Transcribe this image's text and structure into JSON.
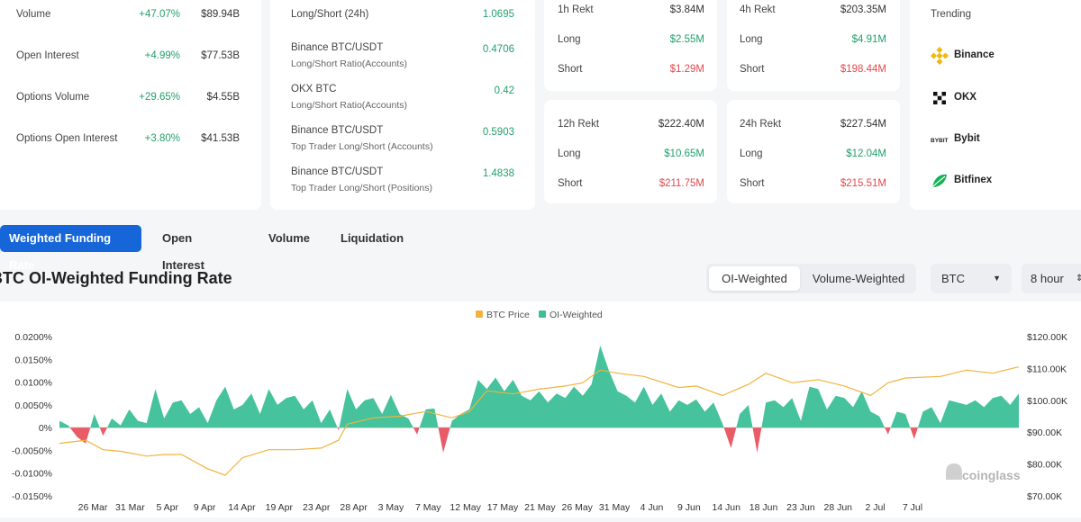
{
  "stats": [
    {
      "label": "Volume",
      "change": "+47.07%",
      "value": "$89.94B"
    },
    {
      "label": "Open Interest",
      "change": "+4.99%",
      "value": "$77.53B"
    },
    {
      "label": "Options Volume",
      "change": "+29.65%",
      "value": "$4.55B"
    },
    {
      "label": "Options Open Interest",
      "change": "+3.80%",
      "value": "$41.53B"
    }
  ],
  "ratios": [
    {
      "label": "Long/Short (24h)",
      "sub": "",
      "value": "1.0695"
    },
    {
      "label": "Binance BTC/USDT",
      "sub": "Long/Short Ratio(Accounts)",
      "value": "0.4706"
    },
    {
      "label": "OKX BTC",
      "sub": "Long/Short Ratio(Accounts)",
      "value": "0.42"
    },
    {
      "label": "Binance BTC/USDT",
      "sub": "Top Trader Long/Short (Accounts)",
      "value": "0.5903"
    },
    {
      "label": "Binance BTC/USDT",
      "sub": "Top Trader Long/Short (Positions)",
      "value": "1.4838"
    }
  ],
  "rekt": [
    {
      "title": "1h Rekt",
      "total": "$3.84M",
      "long_label": "Long",
      "long": "$2.55M",
      "short_label": "Short",
      "short": "$1.29M"
    },
    {
      "title": "4h Rekt",
      "total": "$203.35M",
      "long_label": "Long",
      "long": "$4.91M",
      "short_label": "Short",
      "short": "$198.44M"
    },
    {
      "title": "12h Rekt",
      "total": "$222.40M",
      "long_label": "Long",
      "long": "$10.65M",
      "short_label": "Short",
      "short": "$211.75M"
    },
    {
      "title": "24h Rekt",
      "total": "$227.54M",
      "long_label": "Long",
      "long": "$12.04M",
      "short_label": "Short",
      "short": "$215.51M"
    }
  ],
  "trending": {
    "title": "Trending",
    "items": [
      {
        "name": "Binance",
        "icon": "binance-logo-icon",
        "color": "#f0b90b"
      },
      {
        "name": "OKX",
        "icon": "okx-logo-icon",
        "color": "#111111"
      },
      {
        "name": "Bybit",
        "icon": "bybit-logo-icon",
        "color": "#222222"
      },
      {
        "name": "Bitfinex",
        "icon": "bitfinex-logo-icon",
        "color": "#16b157"
      }
    ]
  },
  "tabs": [
    "Weighted Funding Rate",
    "Open Interest",
    "Volume",
    "Liquidation"
  ],
  "chart_title": "BTC OI-Weighted Funding Rate",
  "weighting": {
    "options": [
      "OI-Weighted",
      "Volume-Weighted"
    ],
    "selected": "OI-Weighted"
  },
  "coin_select": {
    "value": "BTC",
    "icon": "chevron-down-icon"
  },
  "interval_select": {
    "value": "8 hour",
    "icon": "up-down-chevron-icon"
  },
  "watermark": "coinglass",
  "colors": {
    "accent": "#1666d9",
    "funding": "#3cbf98",
    "negative": "#e8535f",
    "price": "#f1b33c",
    "positive_text": "#22a06b",
    "negative_text": "#e5484d"
  },
  "chart_data": {
    "type": "area",
    "title": "BTC OI-Weighted Funding Rate",
    "legend": [
      "BTC Price",
      "OI-Weighted"
    ],
    "legend_position": "top",
    "x_tick_labels": [
      "26 Mar",
      "31 Mar",
      "5 Apr",
      "9 Apr",
      "14 Apr",
      "19 Apr",
      "23 Apr",
      "28 Apr",
      "3 May",
      "7 May",
      "12 May",
      "17 May",
      "21 May",
      "26 May",
      "31 May",
      "4 Jun",
      "9 Jun",
      "14 Jun",
      "18 Jun",
      "23 Jun",
      "28 Jun",
      "2 Jul",
      "7 Jul"
    ],
    "y_left_ticks": [
      "0.0200%",
      "0.0150%",
      "0.0100%",
      "0.0050%",
      "0%",
      "-0.0050%",
      "-0.0100%",
      "-0.0150%"
    ],
    "y_left_range": [
      -0.015,
      0.02
    ],
    "y_right_ticks": [
      "$120.00K",
      "$110.00K",
      "$100.00K",
      "$90.00K",
      "$80.00K",
      "$70.00K"
    ],
    "y_right_range": [
      70000,
      120000
    ],
    "date_range": [
      "2025-03-21",
      "2025-07-09"
    ],
    "series": [
      {
        "name": "OI-Weighted",
        "axis": "left",
        "unit": "%",
        "points": [
          [
            "2025-03-21",
            0.0015
          ],
          [
            "2025-03-22",
            0.0005
          ],
          [
            "2025-03-23",
            -0.002
          ],
          [
            "2025-03-24",
            -0.0035
          ],
          [
            "2025-03-25",
            0.003
          ],
          [
            "2025-03-26",
            -0.0018
          ],
          [
            "2025-03-27",
            0.002
          ],
          [
            "2025-03-28",
            0.0005
          ],
          [
            "2025-03-29",
            0.004
          ],
          [
            "2025-03-30",
            0.0015
          ],
          [
            "2025-03-31",
            0.001
          ],
          [
            "2025-04-01",
            0.0085
          ],
          [
            "2025-04-02",
            0.002
          ],
          [
            "2025-04-03",
            0.0055
          ],
          [
            "2025-04-04",
            0.006
          ],
          [
            "2025-04-05",
            0.003
          ],
          [
            "2025-04-06",
            0.0045
          ],
          [
            "2025-04-07",
            0.001
          ],
          [
            "2025-04-08",
            0.006
          ],
          [
            "2025-04-09",
            0.009
          ],
          [
            "2025-04-10",
            0.004
          ],
          [
            "2025-04-11",
            0.005
          ],
          [
            "2025-04-12",
            0.0075
          ],
          [
            "2025-04-13",
            0.003
          ],
          [
            "2025-04-14",
            0.0085
          ],
          [
            "2025-04-15",
            0.005
          ],
          [
            "2025-04-16",
            0.0065
          ],
          [
            "2025-04-17",
            0.007
          ],
          [
            "2025-04-18",
            0.004
          ],
          [
            "2025-04-19",
            0.006
          ],
          [
            "2025-04-20",
            0.001
          ],
          [
            "2025-04-21",
            0.004
          ],
          [
            "2025-04-22",
            -0.0006
          ],
          [
            "2025-04-23",
            0.0085
          ],
          [
            "2025-04-24",
            0.004
          ],
          [
            "2025-04-25",
            0.006
          ],
          [
            "2025-04-26",
            0.0065
          ],
          [
            "2025-04-27",
            0.003
          ],
          [
            "2025-04-28",
            0.0072
          ],
          [
            "2025-04-29",
            0.003
          ],
          [
            "2025-04-30",
            0.002
          ],
          [
            "2025-05-01",
            -0.0015
          ],
          [
            "2025-05-02",
            0.004
          ],
          [
            "2025-05-03",
            0.0042
          ],
          [
            "2025-05-04",
            -0.0055
          ],
          [
            "2025-05-05",
            0.0015
          ],
          [
            "2025-05-06",
            0.003
          ],
          [
            "2025-05-07",
            0.004
          ],
          [
            "2025-05-08",
            0.0105
          ],
          [
            "2025-05-09",
            0.0085
          ],
          [
            "2025-05-10",
            0.011
          ],
          [
            "2025-05-11",
            0.008
          ],
          [
            "2025-05-12",
            0.0105
          ],
          [
            "2025-05-13",
            0.007
          ],
          [
            "2025-05-14",
            0.006
          ],
          [
            "2025-05-15",
            0.008
          ],
          [
            "2025-05-16",
            0.0055
          ],
          [
            "2025-05-17",
            0.0075
          ],
          [
            "2025-05-18",
            0.0065
          ],
          [
            "2025-05-19",
            0.009
          ],
          [
            "2025-05-20",
            0.007
          ],
          [
            "2025-05-21",
            0.0095
          ],
          [
            "2025-05-22",
            0.018
          ],
          [
            "2025-05-23",
            0.0125
          ],
          [
            "2025-05-24",
            0.008
          ],
          [
            "2025-05-25",
            0.007
          ],
          [
            "2025-05-26",
            0.0055
          ],
          [
            "2025-05-27",
            0.009
          ],
          [
            "2025-05-28",
            0.005
          ],
          [
            "2025-05-29",
            0.0075
          ],
          [
            "2025-05-30",
            0.0035
          ],
          [
            "2025-05-31",
            0.006
          ],
          [
            "2025-06-01",
            0.005
          ],
          [
            "2025-06-02",
            0.0062
          ],
          [
            "2025-06-03",
            0.0035
          ],
          [
            "2025-06-04",
            0.0055
          ],
          [
            "2025-06-05",
            0.001
          ],
          [
            "2025-06-06",
            -0.0045
          ],
          [
            "2025-06-07",
            0.003
          ],
          [
            "2025-06-08",
            0.005
          ],
          [
            "2025-06-09",
            -0.0055
          ],
          [
            "2025-06-10",
            0.0055
          ],
          [
            "2025-06-11",
            0.006
          ],
          [
            "2025-06-12",
            0.0045
          ],
          [
            "2025-06-13",
            0.0065
          ],
          [
            "2025-06-14",
            0.0015
          ],
          [
            "2025-06-15",
            0.009
          ],
          [
            "2025-06-16",
            0.0085
          ],
          [
            "2025-06-17",
            0.004
          ],
          [
            "2025-06-18",
            0.007
          ],
          [
            "2025-06-19",
            0.0065
          ],
          [
            "2025-06-20",
            0.0045
          ],
          [
            "2025-06-21",
            0.008
          ],
          [
            "2025-06-22",
            0.0035
          ],
          [
            "2025-06-23",
            0.0025
          ],
          [
            "2025-06-24",
            -0.0015
          ],
          [
            "2025-06-25",
            0.0035
          ],
          [
            "2025-06-26",
            0.003
          ],
          [
            "2025-06-27",
            -0.0025
          ],
          [
            "2025-06-28",
            0.0035
          ],
          [
            "2025-06-29",
            0.0045
          ],
          [
            "2025-06-30",
            0.001
          ],
          [
            "2025-07-01",
            0.006
          ],
          [
            "2025-07-02",
            0.0055
          ],
          [
            "2025-07-03",
            0.005
          ],
          [
            "2025-07-04",
            0.006
          ],
          [
            "2025-07-05",
            0.0045
          ],
          [
            "2025-07-06",
            0.0065
          ],
          [
            "2025-07-07",
            0.007
          ],
          [
            "2025-07-08",
            0.005
          ],
          [
            "2025-07-09",
            0.0075
          ]
        ]
      },
      {
        "name": "BTC Price",
        "axis": "right",
        "unit": "USD",
        "points": [
          [
            "2025-03-21",
            86500
          ],
          [
            "2025-03-24",
            87500
          ],
          [
            "2025-03-26",
            84500
          ],
          [
            "2025-03-28",
            84000
          ],
          [
            "2025-03-31",
            82500
          ],
          [
            "2025-04-02",
            83000
          ],
          [
            "2025-04-04",
            83000
          ],
          [
            "2025-04-07",
            78500
          ],
          [
            "2025-04-09",
            76500
          ],
          [
            "2025-04-11",
            82000
          ],
          [
            "2025-04-14",
            84500
          ],
          [
            "2025-04-17",
            84500
          ],
          [
            "2025-04-20",
            85000
          ],
          [
            "2025-04-22",
            87500
          ],
          [
            "2025-04-23",
            92500
          ],
          [
            "2025-04-26",
            94500
          ],
          [
            "2025-04-29",
            95000
          ],
          [
            "2025-05-02",
            96500
          ],
          [
            "2025-05-05",
            94500
          ],
          [
            "2025-05-07",
            96500
          ],
          [
            "2025-05-09",
            103000
          ],
          [
            "2025-05-12",
            102000
          ],
          [
            "2025-05-15",
            103500
          ],
          [
            "2025-05-18",
            104500
          ],
          [
            "2025-05-20",
            105500
          ],
          [
            "2025-05-22",
            109500
          ],
          [
            "2025-05-24",
            108500
          ],
          [
            "2025-05-27",
            107500
          ],
          [
            "2025-05-31",
            104000
          ],
          [
            "2025-06-02",
            104500
          ],
          [
            "2025-06-05",
            101500
          ],
          [
            "2025-06-08",
            105000
          ],
          [
            "2025-06-10",
            108500
          ],
          [
            "2025-06-13",
            105500
          ],
          [
            "2025-06-16",
            106500
          ],
          [
            "2025-06-19",
            104500
          ],
          [
            "2025-06-22",
            101500
          ],
          [
            "2025-06-24",
            105500
          ],
          [
            "2025-06-26",
            107000
          ],
          [
            "2025-06-30",
            107500
          ],
          [
            "2025-07-03",
            109500
          ],
          [
            "2025-07-06",
            108500
          ],
          [
            "2025-07-09",
            110500
          ]
        ]
      }
    ]
  }
}
